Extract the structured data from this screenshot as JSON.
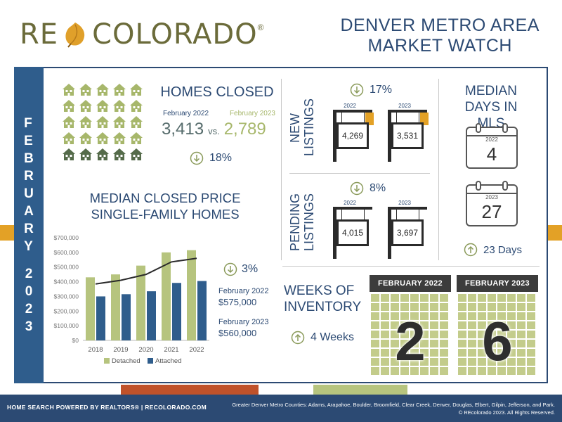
{
  "brand": {
    "logo_re": "RE",
    "logo_colorado": "COLORADO",
    "logo_reg": "®",
    "title_line1": "DENVER METRO AREA",
    "title_line2": "MARKET WATCH"
  },
  "month_label": {
    "month_letters": [
      "F",
      "E",
      "B",
      "R",
      "U",
      "A",
      "R",
      "Y"
    ],
    "year_letters": [
      "2",
      "0",
      "2",
      "3"
    ]
  },
  "homes_closed": {
    "title": "HOMES CLOSED",
    "year1_label": "February 2022",
    "year2_label": "February 2023",
    "value1": "3,413",
    "vs": "vs.",
    "value2": "2,789",
    "change": "18%",
    "change_direction": "down"
  },
  "median_price": {
    "title_line1": "MEDIAN CLOSED PRICE",
    "title_line2": "SINGLE-FAMILY HOMES",
    "change": "3%",
    "change_direction": "down",
    "note1_label": "February 2022",
    "note1_value": "$575,000",
    "note2_label": "February 2023",
    "note2_value": "$560,000"
  },
  "chart_data": {
    "type": "bar",
    "categories": [
      "2018",
      "2019",
      "2020",
      "2021",
      "2022"
    ],
    "series": [
      {
        "name": "Detached",
        "values": [
          430000,
          450000,
          510000,
          600000,
          615000
        ],
        "color": "#b6c47e"
      },
      {
        "name": "Attached",
        "values": [
          300000,
          315000,
          335000,
          392000,
          405000
        ],
        "color": "#2f5d8c"
      }
    ],
    "trend_line": {
      "values": [
        385000,
        410000,
        450000,
        535000,
        560000
      ],
      "color": "#2a2a2a"
    },
    "y_ticks": [
      "$0",
      "$100,000",
      "$200,000",
      "$300,000",
      "$400,000",
      "$500,000",
      "$600,000",
      "$700,000"
    ],
    "ylim": [
      0,
      700000
    ],
    "legend_position": "bottom"
  },
  "new_listings": {
    "title_line1": "NEW",
    "title_line2": "LISTINGS",
    "change": "17%",
    "change_direction": "down",
    "year1": "2022",
    "year2": "2023",
    "value1": "4,269",
    "value2": "3,531"
  },
  "pending_listings": {
    "title_line1": "PENDING",
    "title_line2": "LISTINGS",
    "change": "8%",
    "change_direction": "down",
    "year1": "2022",
    "year2": "2023",
    "value1": "4,015",
    "value2": "3,697"
  },
  "days_in_mls": {
    "title_line1": "MEDIAN",
    "title_line2": "DAYS IN MLS",
    "year1": "2022",
    "value1": "4",
    "year2": "2023",
    "value2": "27",
    "change": "23 Days",
    "change_direction": "up"
  },
  "weeks_inventory": {
    "title_line1": "WEEKS OF",
    "title_line2": "INVENTORY",
    "change": "4 Weeks",
    "change_direction": "up",
    "box1_label": "FEBRUARY 2022",
    "box1_value": "2",
    "box2_label": "FEBRUARY 2023",
    "box2_value": "6"
  },
  "footer": {
    "left": "HOME SEARCH POWERED BY REALTORS® | RECOLORADO.COM",
    "right_line1": "Greater Denver Metro Counties: Adams, Arapahoe, Boulder, Broomfield, Clear Creek, Denver, Douglas, Elbert, Gilpin, Jefferson, and Park.",
    "right_line2": "© REcolorado 2023. All Rights Reserved."
  },
  "colors": {
    "navy": "#2c4a73",
    "blue": "#2f5d8c",
    "green": "#a7b76b",
    "gold": "#e3a126",
    "accent_red": "#c0522a"
  }
}
